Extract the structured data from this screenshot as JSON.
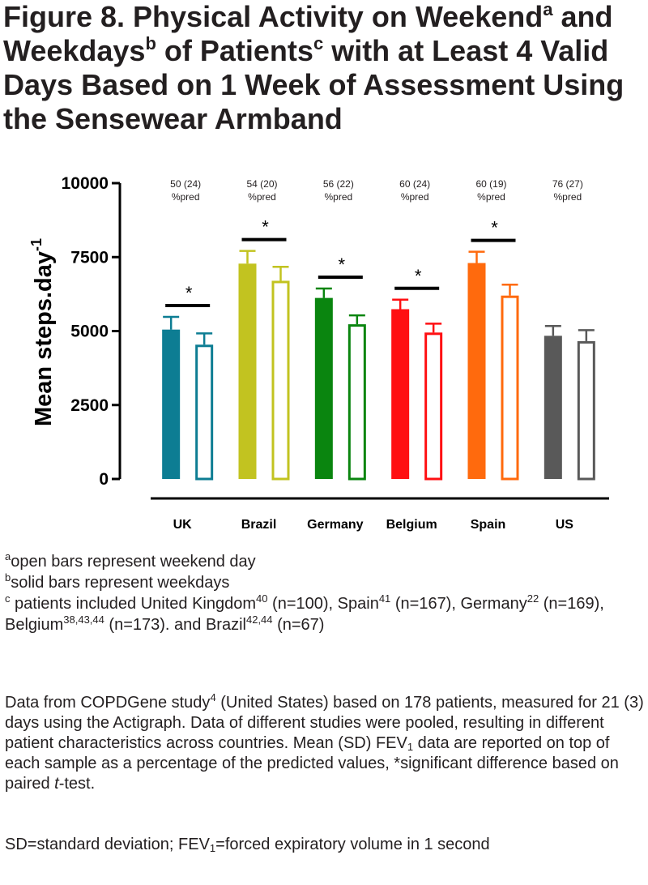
{
  "figure": {
    "title_part1": "Figure 8. Physical Activity on Weekend",
    "title_sup1": "a",
    "title_part2": " and Weekdays",
    "title_sup2": "b",
    "title_part3": " of Patients",
    "title_sup3": "c",
    "title_part4": " with at Least 4 Valid Days Based on 1 Week of Assessment Using the Sensewear Armband"
  },
  "footnotes": {
    "a_mark": "a",
    "a_text": "open bars represent weekend day",
    "b_mark": "b",
    "b_text": "solid bars represent weekdays",
    "c_mark": "c",
    "c_text1": " patients included United Kingdom",
    "c_ref1": "40",
    "c_text2": " (n=100), Spain",
    "c_ref2": "41",
    "c_text3": " (n=167), Germany",
    "c_ref3": "22",
    "c_text4": " (n=169), Belgium",
    "c_ref4": "38,43,44",
    "c_text5": " (n=173). and Brazil",
    "c_ref5": "42,44",
    "c_text6": " (n=67)"
  },
  "paragraph1": {
    "t1": "Data from COPDGene study",
    "ref1": "4",
    "t2": " (United States) based on 178 patients, measured for 21 (3) days using the Actigraph. Data of different studies were pooled, resulting in different patient characteristics across countries. Mean (SD) FEV",
    "sub1": "1",
    "t3": " data are reported on top of each sample as a percentage of the predicted values, *significant difference based on paired ",
    "italic": "t",
    "t4": "-test."
  },
  "paragraph2": {
    "t1": "SD=standard deviation; FEV",
    "sub1": "1",
    "t2": "=forced expiratory volume in 1 second"
  },
  "chart_data": {
    "type": "bar",
    "ylabel": "Mean steps.day",
    "ylabel_sup": "-1",
    "ylim": [
      0,
      10000
    ],
    "yticks": [
      0,
      2500,
      5000,
      7500,
      10000
    ],
    "ytick_labels": [
      "0",
      "2500",
      "5000",
      "7500",
      "10000"
    ],
    "categories": [
      "UK",
      "Brazil",
      "Germany",
      "Belgium",
      "Spain",
      "US"
    ],
    "colors": [
      "#0d7d93",
      "#c2c320",
      "#0a850f",
      "#ff0f12",
      "#ff6a0d",
      "#595959"
    ],
    "fev1_labels": [
      "50 (24)",
      "54 (20)",
      "56 (22)",
      "60 (24)",
      "60 (19)",
      "76 (27)"
    ],
    "fev1_unit": "%pred",
    "series": [
      {
        "style": "solid",
        "values": [
          5050,
          7280,
          6120,
          5740,
          7300,
          4840
        ],
        "errors": [
          430,
          430,
          320,
          320,
          380,
          330
        ]
      },
      {
        "style": "open",
        "values": [
          4540,
          6700,
          5230,
          4950,
          6200,
          4660
        ],
        "errors": [
          380,
          470,
          300,
          300,
          370,
          370
        ]
      }
    ],
    "significance": [
      true,
      true,
      true,
      true,
      true,
      false
    ],
    "significance_mark": "*",
    "grid": false,
    "legend": "none"
  }
}
